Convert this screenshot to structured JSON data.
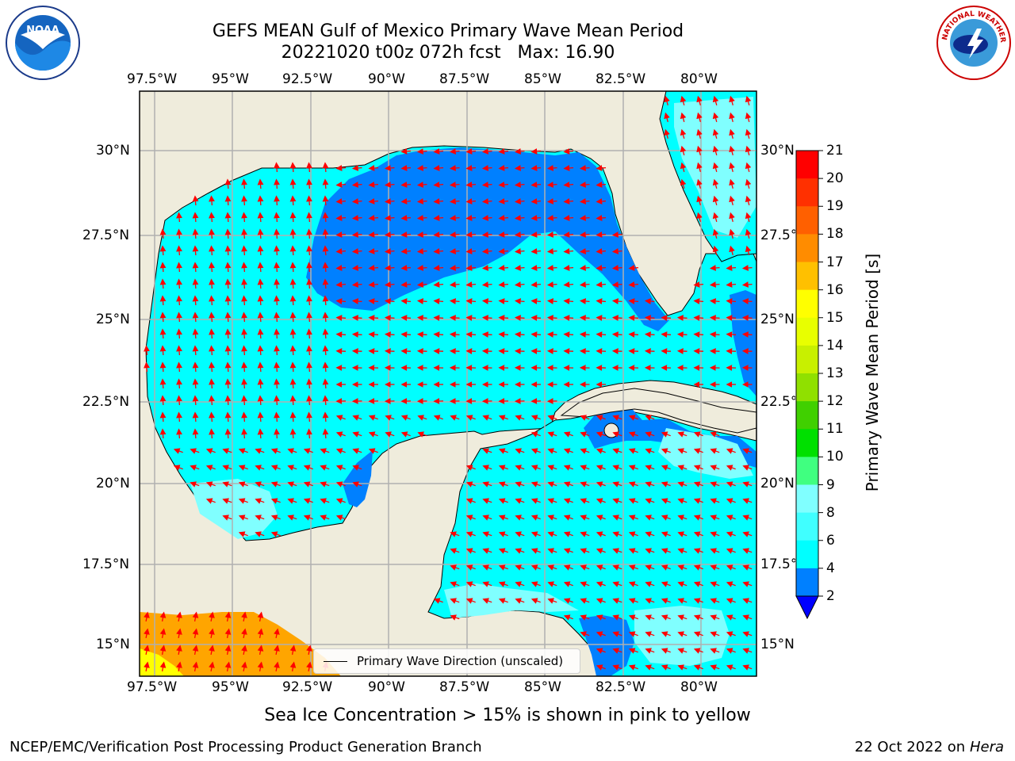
{
  "title": {
    "line1": "GEFS MEAN Gulf of Mexico Primary Wave Mean Period",
    "line2": "20221020 t00z 072h fcst   Max: 16.90"
  },
  "map": {
    "lon_ticks": [
      "97.5°W",
      "95°W",
      "92.5°W",
      "90°W",
      "87.5°W",
      "85°W",
      "82.5°W",
      "80°W"
    ],
    "lat_ticks": [
      "30°N",
      "27.5°N",
      "25°N",
      "22.5°N",
      "20°N",
      "17.5°N",
      "15°N"
    ],
    "legend_label": "Primary Wave Direction (unscaled)",
    "colors": {
      "land": "#efecdc",
      "ocean_low": "#00ffff",
      "ocean_deep": "#0080ff",
      "light": "#80ffff",
      "arrow": "#ff0000",
      "swell_orange": "#ffa500"
    }
  },
  "colorbar": {
    "label": "Primary Wave Mean Period [s]",
    "ticks": [
      "2",
      "4",
      "6",
      "8",
      "9",
      "10",
      "11",
      "12",
      "13",
      "14",
      "15",
      "16",
      "17",
      "18",
      "19",
      "20",
      "21"
    ],
    "colors": [
      "#0000ff",
      "#0080ff",
      "#00ffff",
      "#40ffff",
      "#80ffff",
      "#40ff80",
      "#00e000",
      "#40d000",
      "#90e000",
      "#c8f000",
      "#e8ff00",
      "#ffff00",
      "#ffc000",
      "#ff8c00",
      "#ff6000",
      "#ff3000",
      "#ff0000"
    ]
  },
  "caption": "Sea Ice Concentration > 15% is shown in pink to yellow",
  "footer": {
    "left": "NCEP/EMC/Verification Post Processing Product Generation Branch",
    "date": "22 Oct 2022 on",
    "host": "Hera"
  },
  "logos": {
    "noaa": "NOAA",
    "nws": "NATIONAL WEATHER SERVICE"
  }
}
